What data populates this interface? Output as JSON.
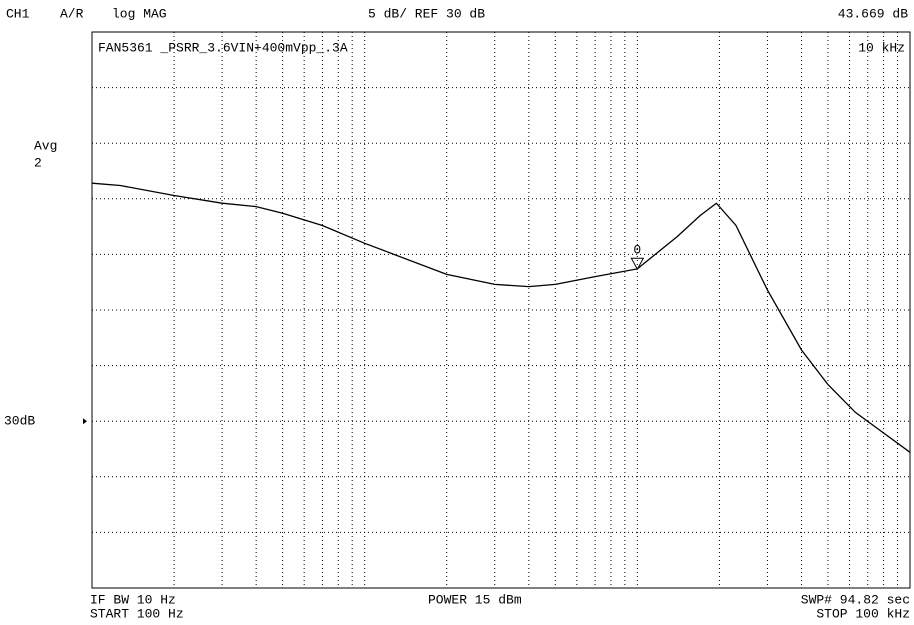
{
  "chart_data": {
    "type": "line",
    "header": {
      "channel": "CH1",
      "ratio": "A/R",
      "format": "log MAG",
      "scale": "5 dB/ REF 30 dB"
    },
    "title": "FAN5361 _PSRR_3.6VIN+400mVpp_.3A",
    "averaging": {
      "label": "Avg",
      "factor": "2"
    },
    "footer": {
      "ifbw": "IF BW 10 Hz",
      "start": "START 100 Hz",
      "power": "POWER 15 dBm",
      "sweep": "SWP# 94.82 sec",
      "stop": "STOP 100 kHz"
    },
    "log_x": true,
    "xlim": [
      100,
      100000
    ],
    "ylim": [
      15,
      65
    ],
    "xgrid": [
      100,
      200,
      300,
      400,
      500,
      600,
      700,
      800,
      900,
      1000,
      2000,
      3000,
      4000,
      5000,
      6000,
      7000,
      8000,
      9000,
      10000,
      20000,
      30000,
      40000,
      50000,
      60000,
      70000,
      80000,
      90000,
      100000
    ],
    "ygrid": [
      15,
      20,
      25,
      30,
      35,
      40,
      45,
      50,
      55,
      60,
      65
    ],
    "ref": {
      "value": 30,
      "label": "30dB"
    },
    "grid": true,
    "series": [
      {
        "name": "CH1",
        "color": "#000000",
        "x": [
          100,
          127,
          200,
          300,
          400,
          500,
          700,
          1000,
          2000,
          3000,
          4000,
          5000,
          7000,
          10000,
          14000,
          17000,
          19500,
          23000,
          30000,
          40000,
          50000,
          63000,
          100000
        ],
        "values": [
          51.4,
          51.2,
          50.3,
          49.6,
          49.3,
          48.7,
          47.6,
          46.0,
          43.2,
          42.3,
          42.1,
          42.3,
          43.0,
          43.7,
          46.6,
          48.5,
          49.6,
          47.6,
          41.8,
          36.4,
          33.3,
          30.8,
          27.2
        ]
      }
    ],
    "marker": {
      "label": "0",
      "x": 10000,
      "x_label": "10 kHz",
      "value": 43.669,
      "value_label": "43.669 dB"
    }
  }
}
